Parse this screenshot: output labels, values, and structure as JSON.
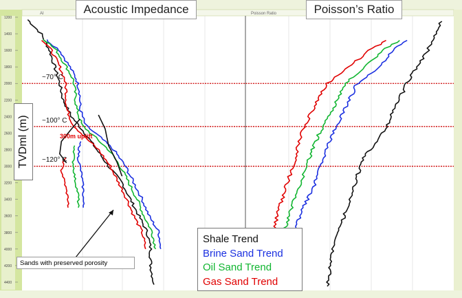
{
  "titles": {
    "left": "Acoustic Impedance",
    "right": "Poisson’s Ratio"
  },
  "header": {
    "left_tab": "AI",
    "right_tab": "Poisson Ratio"
  },
  "y_axis": {
    "label": "TVDml (m)",
    "ticks": [
      "1200",
      "1400",
      "1600",
      "1800",
      "2000",
      "2200",
      "2400",
      "2600",
      "2800",
      "3000",
      "3200",
      "3400",
      "3600",
      "3800",
      "4000",
      "4200",
      "4400"
    ]
  },
  "temperatures": [
    {
      "label": "~70° C",
      "depth": 2000
    },
    {
      "label": "~100° C",
      "depth": 2520
    },
    {
      "label": "~120° C",
      "depth": 3000
    }
  ],
  "uplift_label": "300m uplift",
  "annotation": "Sands with preserved porosity",
  "legend": {
    "items": [
      {
        "label": "Shale Trend",
        "color": "#111111"
      },
      {
        "label": "Brine Sand Trend",
        "color": "#1a2fe0"
      },
      {
        "label": "Oil Sand Trend",
        "color": "#10b530"
      },
      {
        "label": "Gas Sand Trend",
        "color": "#e00000"
      }
    ]
  },
  "colors": {
    "shale": "#111111",
    "brine": "#1a2fe0",
    "oil": "#10b530",
    "gas": "#e00000",
    "temp_line": "#cc0000",
    "frame": "#d4e6a0"
  },
  "chart_data": {
    "type": "line",
    "y_label": "TVDml (m)",
    "ylim": [
      1200,
      4500
    ],
    "panels": [
      {
        "title": "Acoustic Impedance",
        "series": [
          {
            "name": "Shale Trend",
            "points": [
              [
                -0.06,
                1230
              ],
              [
                0.02,
                1400
              ],
              [
                0.07,
                1600
              ],
              [
                0.1,
                1800
              ],
              [
                0.13,
                2000
              ],
              [
                0.15,
                2200
              ],
              [
                0.2,
                2400
              ],
              [
                0.28,
                2600
              ],
              [
                0.35,
                2800
              ],
              [
                0.42,
                3000
              ],
              [
                0.5,
                3200
              ],
              [
                0.55,
                3400
              ],
              [
                0.6,
                3600
              ],
              [
                0.65,
                3800
              ],
              [
                0.67,
                4000
              ],
              [
                0.67,
                4200
              ],
              [
                0.69,
                4430
              ]
            ]
          },
          {
            "name": "Brine Sand Trend",
            "points": [
              [
                0.05,
                1470
              ],
              [
                0.13,
                1600
              ],
              [
                0.19,
                1800
              ],
              [
                0.23,
                1950
              ],
              [
                0.25,
                2100
              ],
              [
                0.25,
                2300
              ],
              [
                0.28,
                2500
              ],
              [
                0.37,
                2650
              ],
              [
                0.45,
                2800
              ],
              [
                0.52,
                3000
              ],
              [
                0.57,
                3200
              ],
              [
                0.62,
                3400
              ],
              [
                0.66,
                3600
              ],
              [
                0.72,
                3800
              ],
              [
                0.73,
                4000
              ]
            ]
          },
          {
            "name": "Oil Sand Trend",
            "points": [
              [
                0.04,
                1470
              ],
              [
                0.11,
                1600
              ],
              [
                0.17,
                1800
              ],
              [
                0.21,
                1950
              ],
              [
                0.22,
                2100
              ],
              [
                0.23,
                2300
              ],
              [
                0.26,
                2500
              ],
              [
                0.34,
                2650
              ],
              [
                0.42,
                2800
              ],
              [
                0.49,
                3000
              ],
              [
                0.54,
                3200
              ],
              [
                0.59,
                3400
              ],
              [
                0.63,
                3600
              ],
              [
                0.68,
                3800
              ],
              [
                0.7,
                4000
              ]
            ]
          },
          {
            "name": "Gas Sand Trend",
            "points": [
              [
                0.03,
                1480
              ],
              [
                0.08,
                1600
              ],
              [
                0.13,
                1800
              ],
              [
                0.16,
                1950
              ],
              [
                0.17,
                2100
              ],
              [
                0.17,
                2300
              ],
              [
                0.21,
                2500
              ],
              [
                0.28,
                2650
              ],
              [
                0.36,
                2800
              ],
              [
                0.43,
                3000
              ],
              [
                0.48,
                3200
              ],
              [
                0.53,
                3400
              ],
              [
                0.57,
                3600
              ],
              [
                0.62,
                3800
              ],
              [
                0.64,
                4000
              ]
            ]
          }
        ]
      },
      {
        "title": "Poisson’s Ratio",
        "series": [
          {
            "name": "Shale Trend",
            "points": [
              [
                0.97,
                1250
              ],
              [
                0.93,
                1500
              ],
              [
                0.85,
                1800
              ],
              [
                0.8,
                2000
              ],
              [
                0.74,
                2300
              ],
              [
                0.68,
                2600
              ],
              [
                0.58,
                2900
              ],
              [
                0.54,
                3200
              ],
              [
                0.5,
                3500
              ],
              [
                0.47,
                3700
              ],
              [
                0.43,
                4000
              ],
              [
                0.41,
                4300
              ],
              [
                0.4,
                4450
              ]
            ]
          },
          {
            "name": "Brine Sand Trend",
            "points": [
              [
                0.8,
                1480
              ],
              [
                0.73,
                1600
              ],
              [
                0.66,
                1800
              ],
              [
                0.55,
                2000
              ],
              [
                0.49,
                2300
              ],
              [
                0.43,
                2600
              ],
              [
                0.38,
                2900
              ],
              [
                0.34,
                3200
              ],
              [
                0.28,
                3500
              ],
              [
                0.23,
                3800
              ],
              [
                0.2,
                4000
              ]
            ]
          },
          {
            "name": "Oil Sand Trend",
            "points": [
              [
                0.76,
                1480
              ],
              [
                0.68,
                1600
              ],
              [
                0.59,
                1800
              ],
              [
                0.49,
                2000
              ],
              [
                0.43,
                2300
              ],
              [
                0.36,
                2600
              ],
              [
                0.31,
                2900
              ],
              [
                0.27,
                3200
              ],
              [
                0.22,
                3500
              ],
              [
                0.18,
                3800
              ],
              [
                0.16,
                4000
              ]
            ]
          },
          {
            "name": "Gas Sand Trend",
            "points": [
              [
                0.7,
                1480
              ],
              [
                0.61,
                1600
              ],
              [
                0.51,
                1800
              ],
              [
                0.4,
                2000
              ],
              [
                0.33,
                2300
              ],
              [
                0.27,
                2600
              ],
              [
                0.24,
                2900
              ],
              [
                0.2,
                3200
              ],
              [
                0.16,
                3500
              ],
              [
                0.13,
                3800
              ],
              [
                0.12,
                4000
              ]
            ]
          }
        ]
      }
    ],
    "sand_with_preserved_porosity": [
      {
        "name": "Brine Sand Trend",
        "points": [
          [
            0.25,
            2700
          ],
          [
            0.24,
            2900
          ],
          [
            0.26,
            3100
          ],
          [
            0.27,
            3300
          ],
          [
            0.27,
            3500
          ]
        ]
      },
      {
        "name": "Oil Sand Trend",
        "points": [
          [
            0.22,
            2750
          ],
          [
            0.21,
            2950
          ],
          [
            0.22,
            3150
          ],
          [
            0.24,
            3350
          ],
          [
            0.24,
            3500
          ]
        ]
      },
      {
        "name": "Gas Sand Trend",
        "points": [
          [
            0.16,
            2900
          ],
          [
            0.14,
            3050
          ],
          [
            0.16,
            3200
          ],
          [
            0.18,
            3400
          ],
          [
            0.18,
            3500
          ]
        ]
      }
    ],
    "shale_uplift_branch": [
      [
        0.36,
        2380
      ],
      [
        0.4,
        2550
      ],
      [
        0.42,
        2750
      ],
      [
        0.47,
        2950
      ],
      [
        0.5,
        3120
      ]
    ],
    "shale_left_branch": [
      [
        0.25,
        2430
      ],
      [
        0.2,
        2550
      ],
      [
        0.14,
        2700
      ],
      [
        0.13,
        2850
      ],
      [
        0.17,
        2960
      ]
    ]
  }
}
